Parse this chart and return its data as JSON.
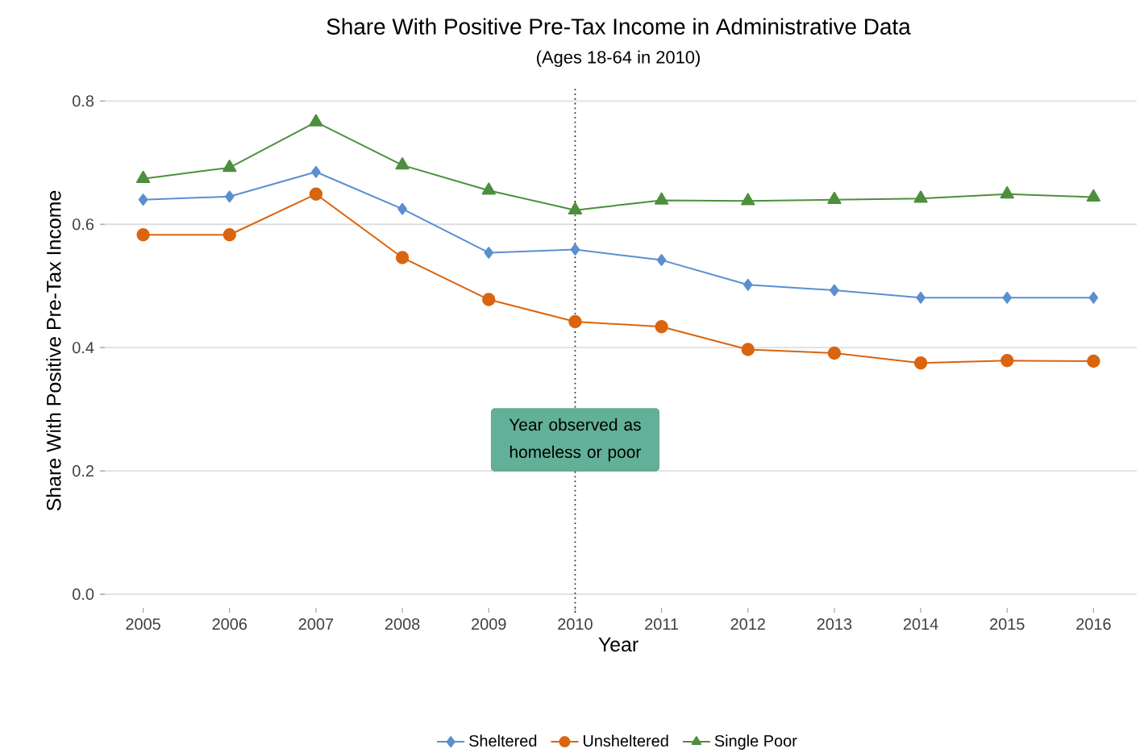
{
  "chart_data": {
    "type": "line",
    "title": "Share With Positive Pre-Tax Income in Administrative Data",
    "subtitle": "(Ages 18-64 in 2010)",
    "xlabel": "Year",
    "ylabel": "Share With Positive Pre-Tax Income",
    "x": [
      2005,
      2006,
      2007,
      2008,
      2009,
      2010,
      2011,
      2012,
      2013,
      2014,
      2015,
      2016
    ],
    "series": [
      {
        "name": "Sheltered",
        "color": "#5b8fd0",
        "marker": "diamond",
        "values": [
          0.64,
          0.645,
          0.685,
          0.625,
          0.554,
          0.559,
          0.542,
          0.502,
          0.493,
          0.481,
          0.481,
          0.481
        ]
      },
      {
        "name": "Unsheltered",
        "color": "#d9650f",
        "marker": "circle",
        "values": [
          0.583,
          0.583,
          0.649,
          0.546,
          0.478,
          0.442,
          0.434,
          0.397,
          0.391,
          0.375,
          0.379,
          0.378
        ]
      },
      {
        "name": "Single Poor",
        "color": "#4d8f3e",
        "marker": "triangle",
        "values": [
          0.674,
          0.692,
          0.766,
          0.696,
          0.655,
          0.623,
          0.639,
          0.638,
          0.64,
          0.642,
          0.649,
          0.644
        ]
      }
    ],
    "xlim": [
      2004.5,
      2016.5
    ],
    "ylim": [
      -0.03,
      0.82
    ],
    "xticks": [
      2005,
      2006,
      2007,
      2008,
      2009,
      2010,
      2011,
      2012,
      2013,
      2014,
      2015,
      2016
    ],
    "yticks": [
      {
        "value": 0,
        "label": "0.0"
      },
      0.2,
      0.4,
      0.6,
      0.8
    ],
    "grid": "y",
    "legend": "bottom",
    "line_style": "solid",
    "ref_lines": [
      {
        "axis": "x",
        "value": 2010,
        "label": "Year observed as homeless or poor",
        "color": "#333333",
        "line_style": "dotted"
      }
    ]
  }
}
